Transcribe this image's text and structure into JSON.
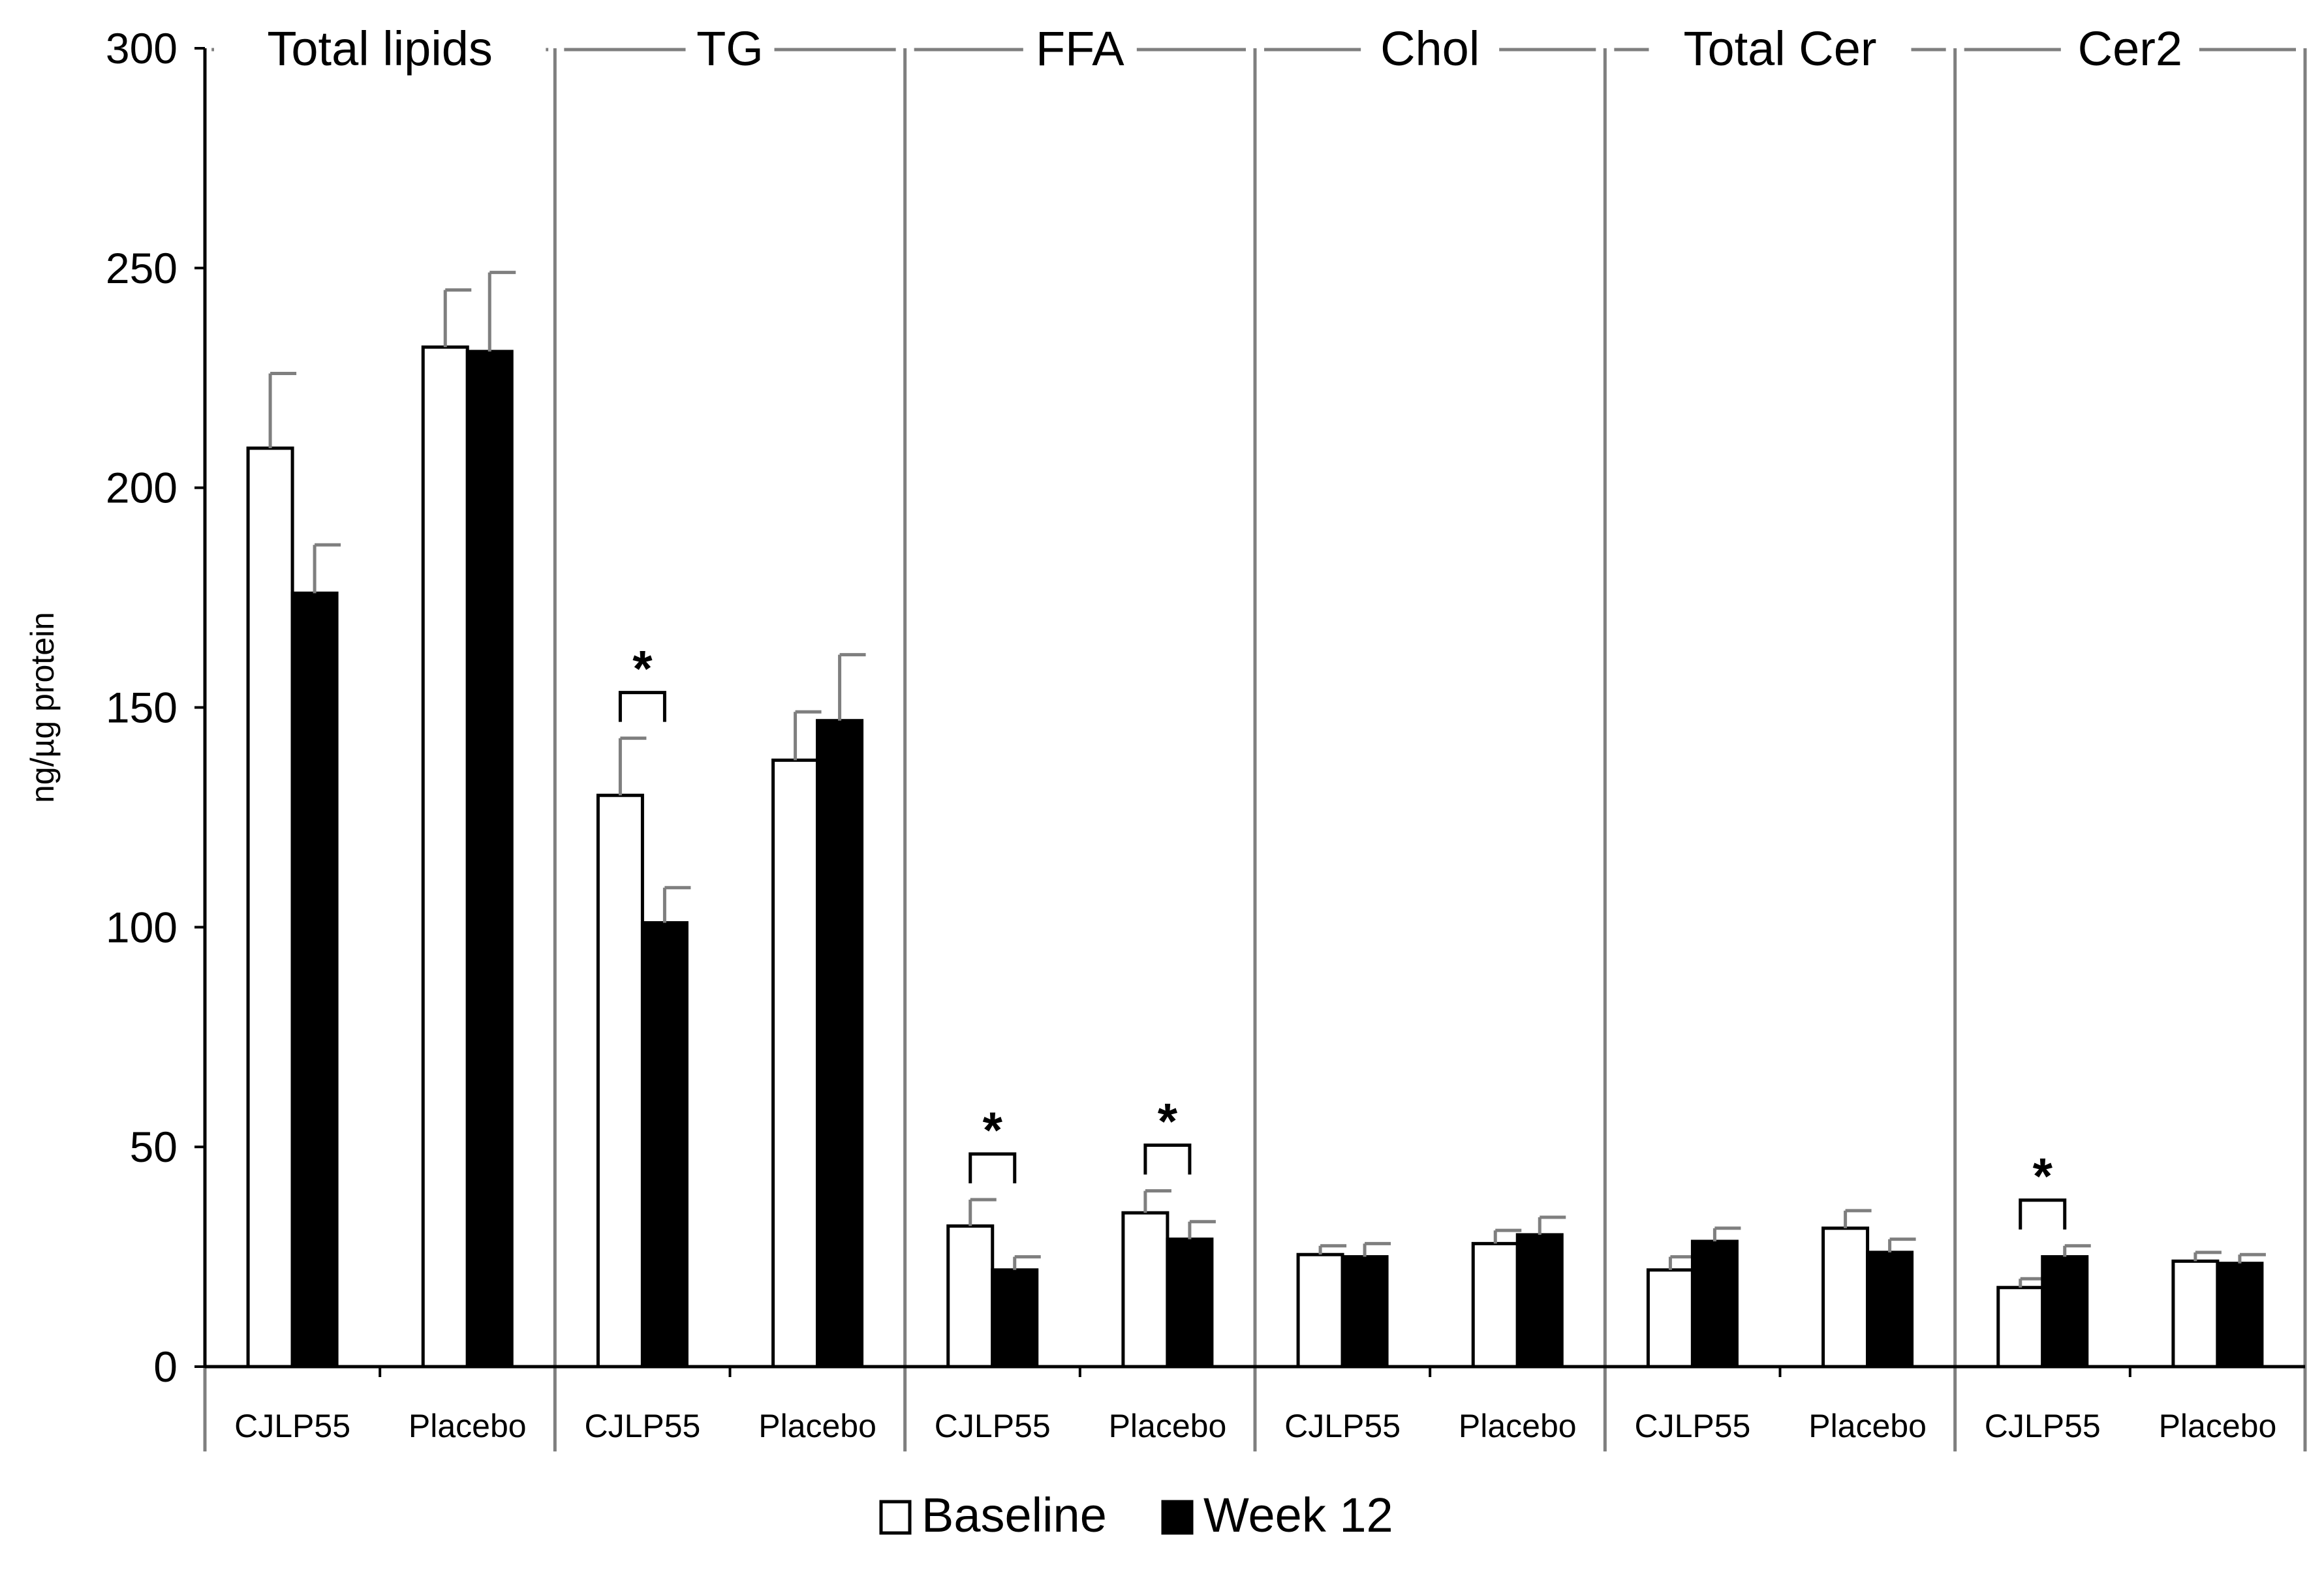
{
  "chart_data": {
    "type": "bar",
    "title": "",
    "ylabel": "ng/µg protein",
    "xlabel": "",
    "ylim": [
      0,
      300
    ],
    "yticks": [
      0,
      50,
      100,
      150,
      200,
      250,
      300
    ],
    "legend": {
      "placement": "bottom-center",
      "entries": [
        {
          "name": "Baseline",
          "color": "#ffffff"
        },
        {
          "name": "Week 12",
          "color": "#000000"
        }
      ]
    },
    "panels": [
      {
        "title": "Total lipids",
        "groups": [
          {
            "label": "CJLP55",
            "baseline": 209,
            "baseline_err": 17,
            "week12": 176,
            "week12_err": 11,
            "significant": false
          },
          {
            "label": "Placebo",
            "baseline": 232,
            "baseline_err": 13,
            "week12": 231,
            "week12_err": 18,
            "significant": false
          }
        ]
      },
      {
        "title": "TG",
        "groups": [
          {
            "label": "CJLP55",
            "baseline": 130,
            "baseline_err": 13,
            "week12": 101,
            "week12_err": 8,
            "significant": true
          },
          {
            "label": "Placebo",
            "baseline": 138,
            "baseline_err": 11,
            "week12": 147,
            "week12_err": 15,
            "significant": false
          }
        ]
      },
      {
        "title": "FFA",
        "groups": [
          {
            "label": "CJLP55",
            "baseline": 32,
            "baseline_err": 6,
            "week12": 22,
            "week12_err": 3,
            "significant": true
          },
          {
            "label": "Placebo",
            "baseline": 35,
            "baseline_err": 5,
            "week12": 29,
            "week12_err": 4,
            "significant": true
          }
        ]
      },
      {
        "title": "Chol",
        "groups": [
          {
            "label": "CJLP55",
            "baseline": 25.5,
            "baseline_err": 2,
            "week12": 25,
            "week12_err": 3,
            "significant": false
          },
          {
            "label": "Placebo",
            "baseline": 28,
            "baseline_err": 3,
            "week12": 30,
            "week12_err": 4,
            "significant": false
          }
        ]
      },
      {
        "title": "Total Cer",
        "groups": [
          {
            "label": "CJLP55",
            "baseline": 22,
            "baseline_err": 3,
            "week12": 28.5,
            "week12_err": 3,
            "significant": false
          },
          {
            "label": "Placebo",
            "baseline": 31.5,
            "baseline_err": 4,
            "week12": 26,
            "week12_err": 3,
            "significant": false
          }
        ]
      },
      {
        "title": "Cer2",
        "groups": [
          {
            "label": "CJLP55",
            "baseline": 18,
            "baseline_err": 2,
            "week12": 25,
            "week12_err": 2.5,
            "significant": true
          },
          {
            "label": "Placebo",
            "baseline": 24,
            "baseline_err": 2,
            "week12": 23.5,
            "week12_err": 2,
            "significant": false
          }
        ]
      }
    ],
    "significance_marker": "*"
  },
  "colors": {
    "frame": "#7f7f7f",
    "axis": "#000000",
    "baseline_fill": "#ffffff",
    "week12_fill": "#000000",
    "error_bar": "#7f7f7f"
  }
}
